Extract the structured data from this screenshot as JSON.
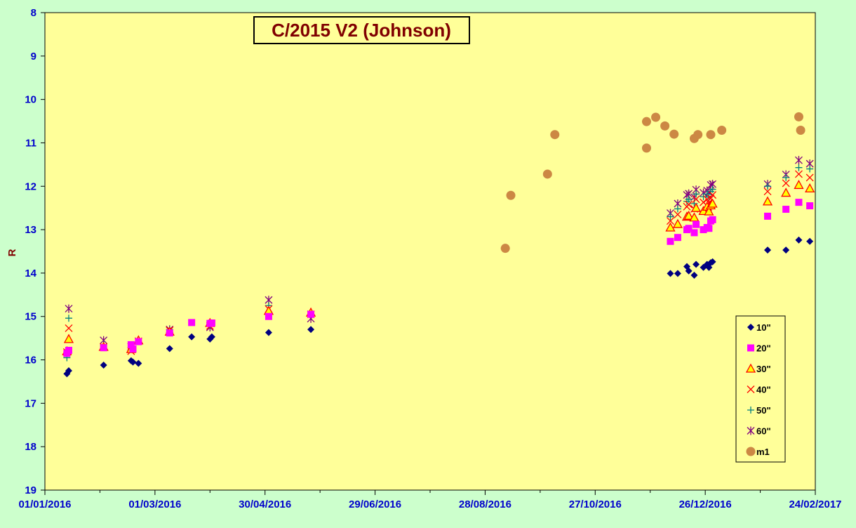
{
  "chart_data": {
    "type": "scatter",
    "title": "C/2015 V2 (Johnson)",
    "xlabel": "",
    "ylabel": "R",
    "y_inverted": true,
    "ylim": [
      8,
      19
    ],
    "yticks": [
      8,
      9,
      10,
      11,
      12,
      13,
      14,
      15,
      16,
      17,
      18,
      19
    ],
    "xlim": [
      "2016-01-01",
      "2017-02-24"
    ],
    "xticks": [
      "2016-01-01",
      "2016-03-01",
      "2016-04-30",
      "2016-06-29",
      "2016-08-28",
      "2016-10-27",
      "2016-12-26",
      "2017-02-24"
    ],
    "xtick_labels": [
      "01/01/2016",
      "01/03/2016",
      "30/04/2016",
      "29/06/2016",
      "28/08/2016",
      "27/10/2016",
      "26/12/2016",
      "24/02/2017"
    ],
    "grid": false,
    "legend_position": "bottom-right",
    "plot_background": "#ffff99",
    "figure_background": "#ccffcc",
    "series": [
      {
        "name": "10\"",
        "marker": "diamond",
        "color": "#000080",
        "points": [
          [
            "2016-01-13",
            16.32
          ],
          [
            "2016-01-14",
            16.25
          ],
          [
            "2016-02-02",
            16.12
          ],
          [
            "2016-02-17",
            16.02
          ],
          [
            "2016-02-18",
            16.05
          ],
          [
            "2016-02-21",
            16.08
          ],
          [
            "2016-03-09",
            15.74
          ],
          [
            "2016-03-21",
            15.47
          ],
          [
            "2016-03-31",
            15.52
          ],
          [
            "2016-04-01",
            15.47
          ],
          [
            "2016-05-02",
            15.37
          ],
          [
            "2016-05-25",
            15.3
          ],
          [
            "2016-12-07",
            14.01
          ],
          [
            "2016-12-11",
            14.01
          ],
          [
            "2016-12-16",
            13.85
          ],
          [
            "2016-12-17",
            13.95
          ],
          [
            "2016-12-20",
            14.05
          ],
          [
            "2016-12-21",
            13.8
          ],
          [
            "2016-12-25",
            13.87
          ],
          [
            "2016-12-27",
            13.8
          ],
          [
            "2016-12-28",
            13.87
          ],
          [
            "2016-12-29",
            13.76
          ],
          [
            "2016-12-30",
            13.74
          ],
          [
            "2017-01-29",
            13.47
          ],
          [
            "2017-02-08",
            13.47
          ],
          [
            "2017-02-15",
            13.24
          ],
          [
            "2017-02-21",
            13.27
          ]
        ]
      },
      {
        "name": "20\"",
        "marker": "square",
        "color": "#ff00ff",
        "points": [
          [
            "2016-01-13",
            15.85
          ],
          [
            "2016-01-14",
            15.78
          ],
          [
            "2016-02-02",
            15.72
          ],
          [
            "2016-02-17",
            15.65
          ],
          [
            "2016-02-18",
            15.75
          ],
          [
            "2016-02-21",
            15.58
          ],
          [
            "2016-03-09",
            15.38
          ],
          [
            "2016-03-21",
            15.14
          ],
          [
            "2016-03-31",
            15.16
          ],
          [
            "2016-04-01",
            15.15
          ],
          [
            "2016-05-02",
            15.0
          ],
          [
            "2016-05-25",
            14.95
          ],
          [
            "2016-12-07",
            13.27
          ],
          [
            "2016-12-11",
            13.18
          ],
          [
            "2016-12-16",
            13.0
          ],
          [
            "2016-12-17",
            12.97
          ],
          [
            "2016-12-20",
            13.07
          ],
          [
            "2016-12-21",
            12.88
          ],
          [
            "2016-12-25",
            13.0
          ],
          [
            "2016-12-27",
            12.95
          ],
          [
            "2016-12-28",
            12.97
          ],
          [
            "2016-12-29",
            12.8
          ],
          [
            "2016-12-30",
            12.77
          ],
          [
            "2017-01-29",
            12.69
          ],
          [
            "2017-02-08",
            12.53
          ],
          [
            "2017-02-15",
            12.37
          ],
          [
            "2017-02-21",
            12.45
          ]
        ]
      },
      {
        "name": "30\"",
        "marker": "triangle",
        "color": "#ff0000",
        "fill": "#ffff00",
        "points": [
          [
            "2016-01-13",
            15.8
          ],
          [
            "2016-01-14",
            15.52
          ],
          [
            "2016-02-02",
            15.7
          ],
          [
            "2016-02-17",
            15.75
          ],
          [
            "2016-02-21",
            15.55
          ],
          [
            "2016-03-09",
            15.35
          ],
          [
            "2016-03-31",
            15.15
          ],
          [
            "2016-05-02",
            14.87
          ],
          [
            "2016-05-25",
            14.91
          ],
          [
            "2016-12-07",
            12.95
          ],
          [
            "2016-12-11",
            12.87
          ],
          [
            "2016-12-16",
            12.7
          ],
          [
            "2016-12-17",
            12.68
          ],
          [
            "2016-12-20",
            12.72
          ],
          [
            "2016-12-21",
            12.5
          ],
          [
            "2016-12-25",
            12.57
          ],
          [
            "2016-12-27",
            12.47
          ],
          [
            "2016-12-28",
            12.58
          ],
          [
            "2016-12-29",
            12.44
          ],
          [
            "2016-12-30",
            12.4
          ],
          [
            "2017-01-29",
            12.35
          ],
          [
            "2017-02-08",
            12.15
          ],
          [
            "2017-02-15",
            11.97
          ],
          [
            "2017-02-21",
            12.05
          ]
        ]
      },
      {
        "name": "40\"",
        "marker": "x",
        "color": "#ff0000",
        "points": [
          [
            "2016-01-13",
            15.82
          ],
          [
            "2016-01-14",
            15.27
          ],
          [
            "2016-02-02",
            15.7
          ],
          [
            "2016-02-17",
            15.8
          ],
          [
            "2016-02-21",
            15.57
          ],
          [
            "2016-03-09",
            15.32
          ],
          [
            "2016-03-31",
            15.22
          ],
          [
            "2016-05-02",
            14.83
          ],
          [
            "2016-05-25",
            14.95
          ],
          [
            "2016-12-07",
            12.8
          ],
          [
            "2016-12-11",
            12.65
          ],
          [
            "2016-12-16",
            12.47
          ],
          [
            "2016-12-17",
            12.42
          ],
          [
            "2016-12-20",
            12.52
          ],
          [
            "2016-12-21",
            12.3
          ],
          [
            "2016-12-25",
            12.37
          ],
          [
            "2016-12-27",
            12.3
          ],
          [
            "2016-12-28",
            12.38
          ],
          [
            "2016-12-29",
            12.28
          ],
          [
            "2016-12-30",
            12.2
          ],
          [
            "2017-01-29",
            12.12
          ],
          [
            "2017-02-08",
            11.93
          ],
          [
            "2017-02-15",
            11.72
          ],
          [
            "2017-02-21",
            11.8
          ]
        ]
      },
      {
        "name": "50\"",
        "marker": "plus",
        "color": "#008080",
        "points": [
          [
            "2016-01-13",
            15.95
          ],
          [
            "2016-01-14",
            15.04
          ],
          [
            "2016-02-02",
            15.65
          ],
          [
            "2016-02-17",
            15.72
          ],
          [
            "2016-03-09",
            15.3
          ],
          [
            "2016-03-31",
            15.18
          ],
          [
            "2016-05-02",
            14.75
          ],
          [
            "2016-05-25",
            14.95
          ],
          [
            "2016-12-07",
            12.7
          ],
          [
            "2016-12-11",
            12.52
          ],
          [
            "2016-12-16",
            12.35
          ],
          [
            "2016-12-17",
            12.3
          ],
          [
            "2016-12-20",
            12.4
          ],
          [
            "2016-12-21",
            12.18
          ],
          [
            "2016-12-25",
            12.24
          ],
          [
            "2016-12-27",
            12.18
          ],
          [
            "2016-12-28",
            12.25
          ],
          [
            "2016-12-29",
            12.12
          ],
          [
            "2016-12-30",
            12.07
          ],
          [
            "2017-01-29",
            12.0
          ],
          [
            "2017-02-08",
            11.8
          ],
          [
            "2017-02-15",
            11.57
          ],
          [
            "2017-02-21",
            11.6
          ]
        ]
      },
      {
        "name": "60\"",
        "marker": "star",
        "color": "#800080",
        "points": [
          [
            "2016-01-14",
            14.82
          ],
          [
            "2016-02-02",
            15.55
          ],
          [
            "2016-02-17",
            15.7
          ],
          [
            "2016-03-09",
            15.3
          ],
          [
            "2016-03-31",
            15.25
          ],
          [
            "2016-05-02",
            14.62
          ],
          [
            "2016-05-25",
            15.05
          ],
          [
            "2016-12-07",
            12.62
          ],
          [
            "2016-12-11",
            12.4
          ],
          [
            "2016-12-16",
            12.2
          ],
          [
            "2016-12-17",
            12.17
          ],
          [
            "2016-12-20",
            12.25
          ],
          [
            "2016-12-21",
            12.08
          ],
          [
            "2016-12-25",
            12.15
          ],
          [
            "2016-12-27",
            12.1
          ],
          [
            "2016-12-28",
            12.14
          ],
          [
            "2016-12-29",
            11.97
          ],
          [
            "2016-12-30",
            11.95
          ],
          [
            "2017-01-29",
            11.95
          ],
          [
            "2017-02-08",
            11.73
          ],
          [
            "2017-02-15",
            11.4
          ],
          [
            "2017-02-21",
            11.48
          ]
        ]
      },
      {
        "name": "m1",
        "marker": "circle",
        "color": "#cc8844",
        "points": [
          [
            "2016-09-08",
            13.43
          ],
          [
            "2016-09-11",
            12.21
          ],
          [
            "2016-10-01",
            11.72
          ],
          [
            "2016-10-05",
            10.81
          ],
          [
            "2016-11-24",
            10.51
          ],
          [
            "2016-11-24",
            11.12
          ],
          [
            "2016-11-29",
            10.41
          ],
          [
            "2016-12-04",
            10.61
          ],
          [
            "2016-12-09",
            10.8
          ],
          [
            "2016-12-20",
            10.9
          ],
          [
            "2016-12-22",
            10.81
          ],
          [
            "2016-12-29",
            10.81
          ],
          [
            "2017-01-04",
            10.71
          ],
          [
            "2017-02-15",
            10.4
          ],
          [
            "2017-02-16",
            10.71
          ]
        ]
      }
    ]
  }
}
